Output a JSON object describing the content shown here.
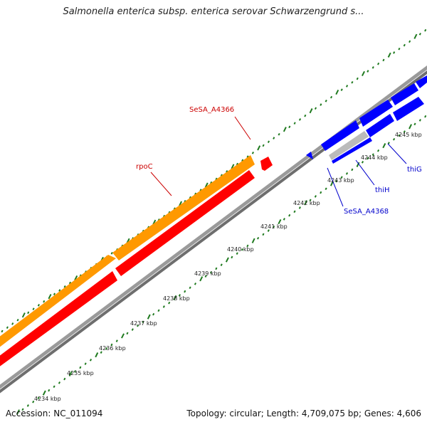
{
  "map": {
    "title": "Salmonella enterica subsp. enterica serovar Schwarzengrund s...",
    "accession": "Accession: NC_011094",
    "stats": "Topology: circular; Length: 4,709,075 bp; Genes: 4,606"
  },
  "colors": {
    "backbone": "#8a8a8a",
    "tick": "#1f7a1f",
    "gene_forward": "#ff9900",
    "gene_reverse": "#ff0000",
    "gene_other": "#0000ff",
    "gene_partial": "#bbbbbb",
    "label_red": "#cc0000",
    "label_blue": "#0000cc"
  },
  "ruler": {
    "unit": "kbp",
    "labels": [
      "4234 kbp",
      "4235 kbp",
      "4236 kbp",
      "4237 kbp",
      "4238 kbp",
      "4239 kbp",
      "4240 kbp",
      "4241 kbp",
      "4242 kbp",
      "4243 kbp",
      "4244 kbp",
      "4245 kbp"
    ]
  },
  "genes": {
    "sesa_a4366": "SeSA_A4366",
    "rpoc": "rpoC",
    "sesa_a4368": "SeSA_A4368",
    "thih": "thiH",
    "thig": "thiG"
  }
}
